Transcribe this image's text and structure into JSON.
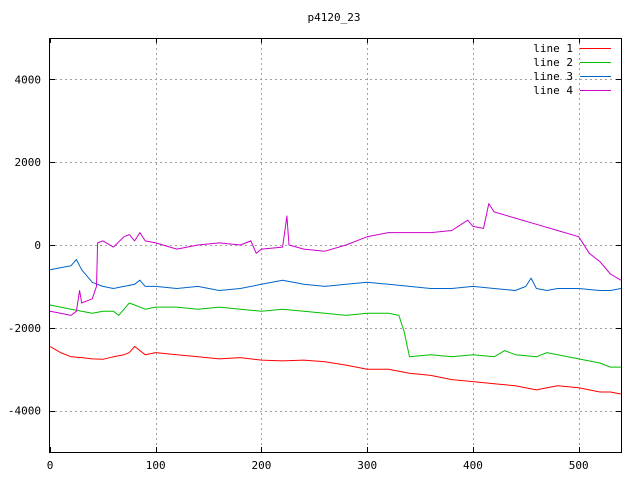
{
  "chart_data": {
    "type": "line",
    "title": "p4120_23",
    "xlabel": "",
    "ylabel": "",
    "xlim": [
      0,
      540
    ],
    "ylim": [
      -5000,
      5000
    ],
    "xticks": [
      0,
      100,
      200,
      300,
      400,
      500
    ],
    "yticks": [
      -4000,
      -2000,
      0,
      2000,
      4000
    ],
    "grid": true,
    "legend_position": "top-right",
    "series": [
      {
        "name": "line 1",
        "color": "#ff0000",
        "points": [
          [
            0,
            -2450
          ],
          [
            10,
            -2600
          ],
          [
            20,
            -2700
          ],
          [
            30,
            -2720
          ],
          [
            40,
            -2750
          ],
          [
            50,
            -2760
          ],
          [
            60,
            -2700
          ],
          [
            70,
            -2650
          ],
          [
            75,
            -2600
          ],
          [
            80,
            -2450
          ],
          [
            85,
            -2550
          ],
          [
            90,
            -2650
          ],
          [
            100,
            -2600
          ],
          [
            120,
            -2650
          ],
          [
            140,
            -2700
          ],
          [
            160,
            -2750
          ],
          [
            180,
            -2720
          ],
          [
            200,
            -2780
          ],
          [
            220,
            -2800
          ],
          [
            240,
            -2780
          ],
          [
            260,
            -2820
          ],
          [
            280,
            -2900
          ],
          [
            300,
            -3000
          ],
          [
            320,
            -3000
          ],
          [
            340,
            -3100
          ],
          [
            360,
            -3150
          ],
          [
            380,
            -3250
          ],
          [
            400,
            -3300
          ],
          [
            420,
            -3350
          ],
          [
            440,
            -3400
          ],
          [
            460,
            -3500
          ],
          [
            470,
            -3450
          ],
          [
            480,
            -3400
          ],
          [
            500,
            -3450
          ],
          [
            510,
            -3500
          ],
          [
            520,
            -3550
          ],
          [
            530,
            -3550
          ],
          [
            540,
            -3600
          ]
        ]
      },
      {
        "name": "line 2",
        "color": "#00c000",
        "points": [
          [
            0,
            -1450
          ],
          [
            10,
            -1500
          ],
          [
            20,
            -1550
          ],
          [
            30,
            -1600
          ],
          [
            40,
            -1650
          ],
          [
            50,
            -1600
          ],
          [
            60,
            -1600
          ],
          [
            65,
            -1700
          ],
          [
            70,
            -1550
          ],
          [
            75,
            -1400
          ],
          [
            80,
            -1450
          ],
          [
            90,
            -1550
          ],
          [
            100,
            -1500
          ],
          [
            120,
            -1500
          ],
          [
            140,
            -1550
          ],
          [
            160,
            -1500
          ],
          [
            180,
            -1550
          ],
          [
            200,
            -1600
          ],
          [
            220,
            -1550
          ],
          [
            240,
            -1600
          ],
          [
            260,
            -1650
          ],
          [
            280,
            -1700
          ],
          [
            300,
            -1650
          ],
          [
            320,
            -1650
          ],
          [
            330,
            -1700
          ],
          [
            335,
            -2100
          ],
          [
            340,
            -2700
          ],
          [
            360,
            -2650
          ],
          [
            380,
            -2700
          ],
          [
            400,
            -2650
          ],
          [
            420,
            -2700
          ],
          [
            430,
            -2550
          ],
          [
            440,
            -2650
          ],
          [
            460,
            -2700
          ],
          [
            470,
            -2600
          ],
          [
            480,
            -2650
          ],
          [
            500,
            -2750
          ],
          [
            520,
            -2850
          ],
          [
            530,
            -2950
          ],
          [
            540,
            -2950
          ]
        ]
      },
      {
        "name": "line 3",
        "color": "#0066cc",
        "points": [
          [
            0,
            -600
          ],
          [
            10,
            -550
          ],
          [
            20,
            -500
          ],
          [
            25,
            -350
          ],
          [
            30,
            -600
          ],
          [
            40,
            -900
          ],
          [
            50,
            -1000
          ],
          [
            60,
            -1050
          ],
          [
            70,
            -1000
          ],
          [
            80,
            -950
          ],
          [
            85,
            -850
          ],
          [
            90,
            -1000
          ],
          [
            100,
            -1000
          ],
          [
            120,
            -1050
          ],
          [
            140,
            -1000
          ],
          [
            160,
            -1100
          ],
          [
            180,
            -1050
          ],
          [
            200,
            -950
          ],
          [
            220,
            -850
          ],
          [
            240,
            -950
          ],
          [
            260,
            -1000
          ],
          [
            280,
            -950
          ],
          [
            300,
            -900
          ],
          [
            320,
            -950
          ],
          [
            340,
            -1000
          ],
          [
            360,
            -1050
          ],
          [
            380,
            -1050
          ],
          [
            400,
            -1000
          ],
          [
            420,
            -1050
          ],
          [
            440,
            -1100
          ],
          [
            450,
            -1000
          ],
          [
            455,
            -800
          ],
          [
            460,
            -1050
          ],
          [
            470,
            -1100
          ],
          [
            480,
            -1050
          ],
          [
            500,
            -1050
          ],
          [
            520,
            -1100
          ],
          [
            530,
            -1100
          ],
          [
            540,
            -1050
          ]
        ]
      },
      {
        "name": "line 4",
        "color": "#cc00cc",
        "points": [
          [
            0,
            -1600
          ],
          [
            10,
            -1650
          ],
          [
            20,
            -1700
          ],
          [
            25,
            -1600
          ],
          [
            28,
            -1100
          ],
          [
            30,
            -1400
          ],
          [
            40,
            -1300
          ],
          [
            44,
            -1000
          ],
          [
            45,
            50
          ],
          [
            50,
            100
          ],
          [
            60,
            -50
          ],
          [
            70,
            200
          ],
          [
            75,
            250
          ],
          [
            80,
            100
          ],
          [
            85,
            300
          ],
          [
            90,
            100
          ],
          [
            100,
            50
          ],
          [
            120,
            -100
          ],
          [
            140,
            0
          ],
          [
            160,
            50
          ],
          [
            180,
            0
          ],
          [
            190,
            100
          ],
          [
            195,
            -200
          ],
          [
            200,
            -100
          ],
          [
            220,
            -50
          ],
          [
            224,
            700
          ],
          [
            226,
            0
          ],
          [
            240,
            -100
          ],
          [
            260,
            -150
          ],
          [
            280,
            0
          ],
          [
            300,
            200
          ],
          [
            320,
            300
          ],
          [
            340,
            300
          ],
          [
            360,
            300
          ],
          [
            380,
            350
          ],
          [
            395,
            600
          ],
          [
            400,
            450
          ],
          [
            410,
            400
          ],
          [
            415,
            1000
          ],
          [
            420,
            800
          ],
          [
            440,
            650
          ],
          [
            460,
            500
          ],
          [
            480,
            350
          ],
          [
            500,
            200
          ],
          [
            510,
            -200
          ],
          [
            520,
            -400
          ],
          [
            530,
            -700
          ],
          [
            540,
            -850
          ]
        ]
      }
    ]
  }
}
